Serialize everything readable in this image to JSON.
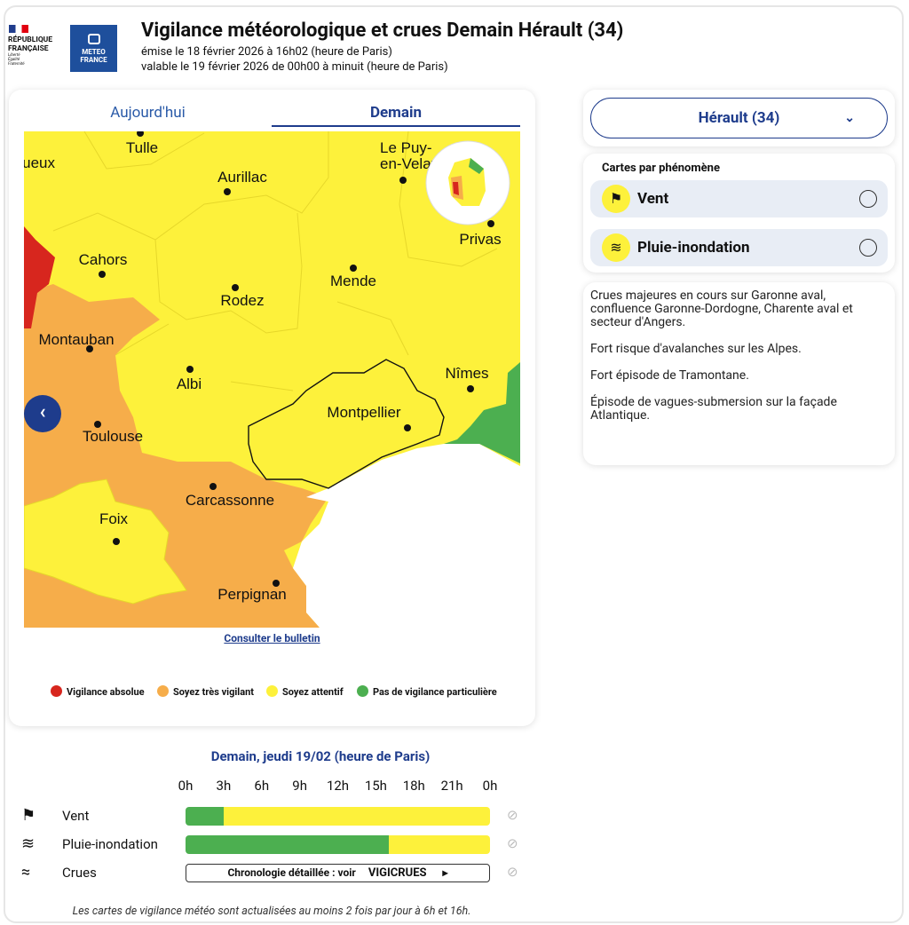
{
  "header": {
    "rf_lines": [
      "RÉPUBLIQUE",
      "FRANÇAISE"
    ],
    "rf_motto": [
      "Liberté",
      "Égalité",
      "Fraternité"
    ],
    "mf_lines": [
      "METEO",
      "FRANCE"
    ],
    "title": "Vigilance météorologique et crues Demain Hérault (34)",
    "issued": "émise le 18 février 2026 à 16h02 (heure de Paris)",
    "valid": "valable le 19 février 2026 de 00h00 à minuit (heure de Paris)"
  },
  "tabs": [
    "Aujourd'hui",
    "Demain"
  ],
  "map": {
    "cities": [
      "Tulle",
      "Périgueux",
      "Aurillac",
      "Le Puy-",
      "en-Velay",
      "Cahors",
      "Rodez",
      "Mende",
      "Privas",
      "Montauban",
      "Albi",
      "Nîmes",
      "Montpellier",
      "Toulouse",
      "Carcassonne",
      "Foix",
      "Perpignan"
    ]
  },
  "bulletin_link": "Consulter le bulletin",
  "legend": [
    {
      "label": "Vigilance absolue",
      "color": "#d7261e"
    },
    {
      "label": "Soyez très vigilant",
      "color": "#f6ad4a"
    },
    {
      "label": "Soyez attentif",
      "color": "#fdf13b"
    },
    {
      "label": "Pas de vigilance particulière",
      "color": "#4caf50"
    }
  ],
  "dept_select": "Hérault (34)",
  "phenomena": {
    "title": "Cartes par phénomène",
    "items": [
      "Vent",
      "Pluie-inondation"
    ]
  },
  "notes": [
    "Crues majeures en cours sur Garonne aval, confluence Garonne-Dordogne, Charente aval et secteur d'Angers.",
    "Fort risque d'avalanches sur les Alpes.",
    "Fort épisode de Tramontane.",
    "Épisode de vagues-submersion sur la façade Atlantique."
  ],
  "timeline": {
    "title": "Demain, jeudi 19/02 (heure de Paris)",
    "hours": [
      "0h",
      "3h",
      "6h",
      "9h",
      "12h",
      "15h",
      "18h",
      "21h",
      "0h"
    ],
    "rows": [
      {
        "label": "Vent",
        "segments": [
          {
            "start": 0,
            "end": 3,
            "color": "#4caf50"
          },
          {
            "start": 3,
            "end": 24,
            "color": "#fdf13b"
          }
        ]
      },
      {
        "label": "Pluie-inondation",
        "segments": [
          {
            "start": 0,
            "end": 16,
            "color": "#4caf50"
          },
          {
            "start": 16,
            "end": 24,
            "color": "#fdf13b"
          }
        ]
      },
      {
        "label": "Crues",
        "button": "Chronologie détaillée : voir",
        "brand": "VIGICRUES"
      }
    ]
  },
  "footnote": "Les cartes de vigilance météo sont actualisées au moins 2 fois par jour à 6h et 16h."
}
